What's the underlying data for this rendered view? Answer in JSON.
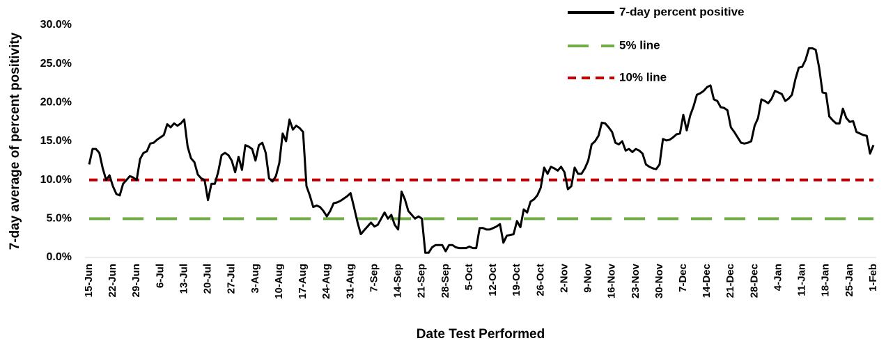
{
  "chart_data": {
    "type": "line",
    "x_label": "Date Test Performed",
    "y_label": "7-day average of percent positivity",
    "categories": [
      "15-Jun",
      null,
      null,
      null,
      null,
      null,
      null,
      "22-Jun",
      null,
      null,
      null,
      null,
      null,
      null,
      "29-Jun",
      null,
      null,
      null,
      null,
      null,
      null,
      "6-Jul",
      null,
      null,
      null,
      null,
      null,
      null,
      "13-Jul",
      null,
      null,
      null,
      null,
      null,
      null,
      "20-Jul",
      null,
      null,
      null,
      null,
      null,
      null,
      "27-Jul",
      null,
      null,
      null,
      null,
      null,
      null,
      "3-Aug",
      null,
      null,
      null,
      null,
      null,
      null,
      "10-Aug",
      null,
      null,
      null,
      null,
      null,
      null,
      "17-Aug",
      null,
      null,
      null,
      null,
      null,
      null,
      "24-Aug",
      null,
      null,
      null,
      null,
      null,
      null,
      "31-Aug",
      null,
      null,
      null,
      null,
      null,
      null,
      "7-Sep",
      null,
      null,
      null,
      null,
      null,
      null,
      "14-Sep",
      null,
      null,
      null,
      null,
      null,
      null,
      "21-Sep",
      null,
      null,
      null,
      null,
      null,
      null,
      "28-Sep",
      null,
      null,
      null,
      null,
      null,
      null,
      "5-Oct",
      null,
      null,
      null,
      null,
      null,
      null,
      "12-Oct",
      null,
      null,
      null,
      null,
      null,
      null,
      "19-Oct",
      null,
      null,
      null,
      null,
      null,
      null,
      "26-Oct",
      null,
      null,
      null,
      null,
      null,
      null,
      "2-Nov",
      null,
      null,
      null,
      null,
      null,
      null,
      "9-Nov",
      null,
      null,
      null,
      null,
      null,
      null,
      "16-Nov",
      null,
      null,
      null,
      null,
      null,
      null,
      "23-Nov",
      null,
      null,
      null,
      null,
      null,
      null,
      "30-Nov",
      null,
      null,
      null,
      null,
      null,
      null,
      "7-Dec",
      null,
      null,
      null,
      null,
      null,
      null,
      "14-Dec",
      null,
      null,
      null,
      null,
      null,
      null,
      "21-Dec",
      null,
      null,
      null,
      null,
      null,
      null,
      "28-Dec",
      null,
      null,
      null,
      null,
      null,
      null,
      "4-Jan",
      null,
      null,
      null,
      null,
      null,
      null,
      "11-Jan",
      null,
      null,
      null,
      null,
      null,
      null,
      "18-Jan",
      null,
      null,
      null,
      null,
      null,
      null,
      "25-Jan",
      null,
      null,
      null,
      null,
      null,
      null,
      "1-Feb"
    ],
    "series": [
      {
        "name": "7-day percent positive",
        "color": "#000000",
        "values": [
          12,
          14,
          14,
          13.5,
          11.5,
          10,
          10.6,
          9.2,
          8.2,
          8,
          9.5,
          10,
          10.5,
          10.3,
          10,
          12.7,
          13.5,
          13.7,
          14.7,
          14.8,
          15.2,
          15.5,
          15.8,
          17.2,
          16.8,
          17.3,
          17,
          17.3,
          17.8,
          14.3,
          12.8,
          12.3,
          10.7,
          10.2,
          10,
          7.4,
          9.5,
          9.5,
          11,
          13.2,
          13.5,
          13.2,
          12.5,
          11,
          13,
          11.3,
          14.5,
          14.3,
          14,
          12.5,
          14.5,
          14.8,
          13.5,
          10.2,
          9.8,
          10.5,
          12.2,
          16,
          15,
          17.8,
          16.5,
          17,
          16.7,
          16.2,
          9.2,
          8,
          6.5,
          6.7,
          6.5,
          6,
          5.3,
          6,
          7,
          7.1,
          7.3,
          7.6,
          7.9,
          8.3,
          6.5,
          4.6,
          3,
          3.5,
          4,
          4.5,
          4,
          4.2,
          5,
          5.8,
          5,
          5.5,
          4.2,
          3.6,
          8.5,
          7.5,
          6,
          5.5,
          5,
          5.3,
          5,
          0.6,
          0.6,
          1.3,
          1.6,
          1.6,
          1.6,
          0.8,
          1.6,
          1.6,
          1.3,
          1.2,
          1.2,
          1.2,
          1.4,
          1.2,
          1.2,
          3.8,
          3.8,
          3.6,
          3.6,
          3.8,
          4,
          4.3,
          1.9,
          2.8,
          2.9,
          3,
          4.7,
          3.9,
          6.2,
          5.8,
          7.2,
          7.5,
          8,
          9,
          11.6,
          10.8,
          11.7,
          11.5,
          11.2,
          11.7,
          11,
          8.8,
          9.2,
          11.6,
          10.8,
          10.8,
          11.5,
          12.5,
          14.6,
          15,
          15.7,
          17.4,
          17.3,
          16.8,
          16.2,
          14.8,
          14.6,
          15,
          13.8,
          14,
          13.6,
          14,
          13.8,
          13.4,
          12,
          11.7,
          11.5,
          11.4,
          12,
          15.3,
          15.1,
          15.2,
          15.5,
          15.9,
          16,
          18.4,
          16.4,
          18.3,
          19.5,
          21,
          21.2,
          21.5,
          22,
          22.2,
          20.4,
          20.2,
          19.4,
          19.3,
          19,
          16.8,
          16.2,
          15.5,
          14.8,
          14.7,
          14.8,
          15,
          17,
          18,
          20.4,
          20.2,
          19.9,
          20.5,
          21.5,
          21.3,
          21.1,
          20.2,
          20.5,
          21,
          23,
          24.5,
          24.6,
          25.5,
          27,
          27,
          26.8,
          24.5,
          21.3,
          21.2,
          18.2,
          17.7,
          17.3,
          17.3,
          19.2,
          18,
          17.5,
          17.6,
          16.2,
          16,
          15.8,
          15.7,
          13.4,
          14.5
        ]
      }
    ],
    "reference_lines": [
      {
        "name": "5% line",
        "value": 5,
        "color": "#70ad47",
        "dash": "long"
      },
      {
        "name": "10% line",
        "value": 10,
        "color": "#c00000",
        "dash": "short"
      }
    ],
    "ylim": [
      0,
      30
    ],
    "yticks": [
      {
        "value": 0,
        "label": "0.0%"
      },
      {
        "value": 5,
        "label": "5.0%"
      },
      {
        "value": 10,
        "label": "10.0%"
      },
      {
        "value": 15,
        "label": "15.0%"
      },
      {
        "value": 20,
        "label": "20.0%"
      },
      {
        "value": 25,
        "label": "25.0%"
      },
      {
        "value": 30,
        "label": "30.0%"
      }
    ],
    "grid": false,
    "legend": "upper right"
  }
}
